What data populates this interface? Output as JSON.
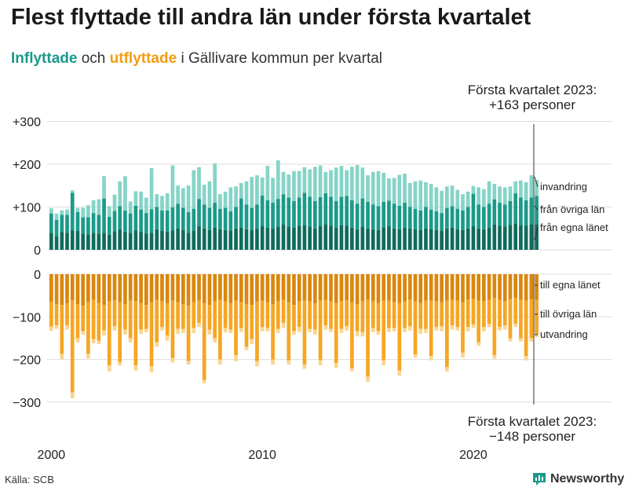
{
  "title": "Flest flyttade till andra län under första kvartalet",
  "subtitle": {
    "in_label": "Inflyttade",
    "och": "och",
    "out_label": "utflyttade",
    "rest": "i Gällivare kommun per kvartal"
  },
  "annotation_top": [
    "Första kvartalet 2023:",
    "+163 personer"
  ],
  "annotation_bottom": [
    "Första kvartalet 2023:",
    "−148 personer"
  ],
  "source": "Källa: SCB",
  "logo_text": "Newsworthy",
  "colors": {
    "in_local": "#0f6b5c",
    "in_other": "#1b9a8a",
    "in_immigration": "#86d4c7",
    "out_local": "#d9870e",
    "out_other": "#f5a623",
    "out_emigration": "#fbd58f",
    "grid": "#dddddd",
    "logo": "#1b9a8a"
  },
  "chart_data": {
    "type": "bar",
    "stacked": true,
    "ylim": [
      -300,
      300
    ],
    "yticks": [
      "+300",
      "+200",
      "+100",
      "0",
      "−100",
      "−200",
      "−300"
    ],
    "xticks": [
      "2000",
      "2010",
      "2020"
    ],
    "grid": true,
    "x": [
      "2000Q1",
      "2000Q2",
      "2000Q3",
      "2000Q4",
      "2001Q1",
      "2001Q2",
      "2001Q3",
      "2001Q4",
      "2002Q1",
      "2002Q2",
      "2002Q3",
      "2002Q4",
      "2003Q1",
      "2003Q2",
      "2003Q3",
      "2003Q4",
      "2004Q1",
      "2004Q2",
      "2004Q3",
      "2004Q4",
      "2005Q1",
      "2005Q2",
      "2005Q3",
      "2005Q4",
      "2006Q1",
      "2006Q2",
      "2006Q3",
      "2006Q4",
      "2007Q1",
      "2007Q2",
      "2007Q3",
      "2007Q4",
      "2008Q1",
      "2008Q2",
      "2008Q3",
      "2008Q4",
      "2009Q1",
      "2009Q2",
      "2009Q3",
      "2009Q4",
      "2010Q1",
      "2010Q2",
      "2010Q3",
      "2010Q4",
      "2011Q1",
      "2011Q2",
      "2011Q3",
      "2011Q4",
      "2012Q1",
      "2012Q2",
      "2012Q3",
      "2012Q4",
      "2013Q1",
      "2013Q2",
      "2013Q3",
      "2013Q4",
      "2014Q1",
      "2014Q2",
      "2014Q3",
      "2014Q4",
      "2015Q1",
      "2015Q2",
      "2015Q3",
      "2015Q4",
      "2016Q1",
      "2016Q2",
      "2016Q3",
      "2016Q4",
      "2017Q1",
      "2017Q2",
      "2017Q3",
      "2017Q4",
      "2018Q1",
      "2018Q2",
      "2018Q3",
      "2018Q4",
      "2019Q1",
      "2019Q2",
      "2019Q3",
      "2019Q4",
      "2020Q1",
      "2020Q2",
      "2020Q3",
      "2020Q4",
      "2021Q1",
      "2021Q2",
      "2021Q3",
      "2021Q4",
      "2022Q1",
      "2022Q2",
      "2022Q3",
      "2022Q4",
      "2023Q1"
    ],
    "series": [
      {
        "name": "från egna länet",
        "group": "in",
        "values": [
          40,
          32,
          42,
          40,
          45,
          44,
          38,
          36,
          40,
          38,
          40,
          35,
          43,
          48,
          42,
          40,
          45,
          42,
          38,
          40,
          48,
          44,
          42,
          45,
          50,
          46,
          40,
          44,
          55,
          50,
          46,
          52,
          48,
          46,
          44,
          50,
          52,
          48,
          46,
          50,
          55,
          52,
          50,
          54,
          60,
          54,
          52,
          56,
          58,
          54,
          50,
          55,
          60,
          56,
          52,
          58,
          56,
          52,
          48,
          54,
          50,
          48,
          46,
          52,
          55,
          50,
          48,
          52,
          50,
          48,
          46,
          50,
          48,
          46,
          44,
          50,
          52,
          48,
          46,
          50,
          55,
          50,
          48,
          52,
          60,
          56,
          54,
          58,
          62,
          58,
          56,
          60,
          60
        ]
      },
      {
        "name": "från övriga län",
        "group": "in",
        "values": [
          45,
          38,
          40,
          42,
          88,
          44,
          38,
          40,
          46,
          44,
          80,
          42,
          48,
          54,
          50,
          45,
          58,
          52,
          48,
          55,
          52,
          48,
          50,
          54,
          58,
          52,
          48,
          52,
          64,
          56,
          52,
          58,
          48,
          52,
          46,
          50,
          68,
          58,
          52,
          56,
          72,
          64,
          60,
          65,
          70,
          68,
          62,
          66,
          75,
          70,
          64,
          68,
          72,
          68,
          62,
          66,
          70,
          64,
          60,
          66,
          62,
          58,
          56,
          60,
          60,
          58,
          55,
          58,
          50,
          48,
          46,
          50,
          46,
          44,
          42,
          48,
          50,
          48,
          46,
          50,
          76,
          56,
          52,
          56,
          58,
          54,
          52,
          56,
          70,
          64,
          60,
          62,
          66
        ]
      },
      {
        "name": "invandring",
        "group": "in",
        "values": [
          12,
          15,
          10,
          12,
          6,
          10,
          22,
          28,
          30,
          36,
          52,
          25,
          38,
          58,
          80,
          28,
          34,
          42,
          36,
          96,
          30,
          34,
          40,
          98,
          42,
          46,
          62,
          90,
          74,
          46,
          62,
          92,
          34,
          38,
          56,
          48,
          36,
          54,
          72,
          68,
          42,
          80,
          58,
          90,
          52,
          54,
          70,
          62,
          60,
          64,
          80,
          74,
          50,
          62,
          78,
          72,
          60,
          78,
          90,
          72,
          62,
          76,
          82,
          68,
          52,
          60,
          72,
          68,
          56,
          64,
          70,
          58,
          60,
          56,
          52,
          50,
          48,
          44,
          38,
          36,
          18,
          40,
          42,
          52,
          36,
          38,
          40,
          34,
          28,
          40,
          42,
          52,
          37
        ]
      },
      {
        "name": "till egna länet",
        "group": "out",
        "values": [
          65,
          70,
          72,
          68,
          62,
          70,
          74,
          66,
          60,
          68,
          72,
          64,
          62,
          66,
          70,
          62,
          64,
          68,
          72,
          66,
          60,
          64,
          68,
          62,
          66,
          70,
          74,
          66,
          62,
          68,
          72,
          64,
          60,
          64,
          68,
          62,
          66,
          70,
          72,
          64,
          62,
          66,
          70,
          64,
          60,
          66,
          72,
          64,
          62,
          64,
          68,
          62,
          60,
          64,
          68,
          64,
          62,
          66,
          70,
          64,
          60,
          64,
          68,
          62,
          62,
          66,
          68,
          64,
          60,
          64,
          68,
          62,
          62,
          64,
          66,
          62,
          60,
          62,
          66,
          60,
          58,
          62,
          64,
          60,
          56,
          60,
          64,
          58,
          56,
          60,
          62,
          58,
          60
        ]
      },
      {
        "name": "till övriga län",
        "group": "out",
        "values": [
          58,
          50,
          115,
          52,
          215,
          80,
          60,
          120,
          92,
          88,
          60,
          150,
          60,
          140,
          60,
          88,
          150,
          62,
          56,
          150,
          100,
          60,
          76,
          135,
          62,
          58,
          130,
          60,
          52,
          180,
          58,
          86,
          140,
          62,
          62,
          128,
          60,
          100,
          80,
          140,
          62,
          60,
          130,
          64,
          54,
          136,
          62,
          60,
          150,
          64,
          62,
          140,
          60,
          64,
          140,
          64,
          60,
          154,
          64,
          72,
          180,
          62,
          66,
          140,
          64,
          60,
          158,
          62,
          62,
          124,
          60,
          66,
          130,
          60,
          56,
          156,
          60,
          62,
          118,
          64,
          60,
          98,
          60,
          56,
          134,
          64,
          56,
          92,
          60,
          90,
          130,
          92,
          82
        ]
      },
      {
        "name": "utvandring",
        "group": "out",
        "values": [
          10,
          8,
          12,
          10,
          14,
          10,
          8,
          12,
          10,
          8,
          12,
          14,
          10,
          8,
          12,
          10,
          12,
          10,
          8,
          14,
          10,
          8,
          12,
          10,
          12,
          10,
          8,
          12,
          10,
          8,
          12,
          10,
          12,
          10,
          8,
          14,
          10,
          8,
          12,
          12,
          10,
          8,
          12,
          10,
          12,
          10,
          8,
          12,
          10,
          8,
          12,
          12,
          10,
          8,
          12,
          10,
          10,
          8,
          12,
          10,
          12,
          10,
          8,
          12,
          10,
          8,
          12,
          10,
          10,
          8,
          12,
          10,
          10,
          8,
          12,
          10,
          10,
          8,
          12,
          10,
          8,
          8,
          10,
          8,
          8,
          8,
          10,
          8,
          8,
          8,
          10,
          8,
          6
        ]
      }
    ],
    "series_labels": {
      "in": [
        "invandring",
        "från övriga län",
        "från egna länet"
      ],
      "out": [
        "till egna länet",
        "till övriga län",
        "utvandring"
      ]
    }
  }
}
